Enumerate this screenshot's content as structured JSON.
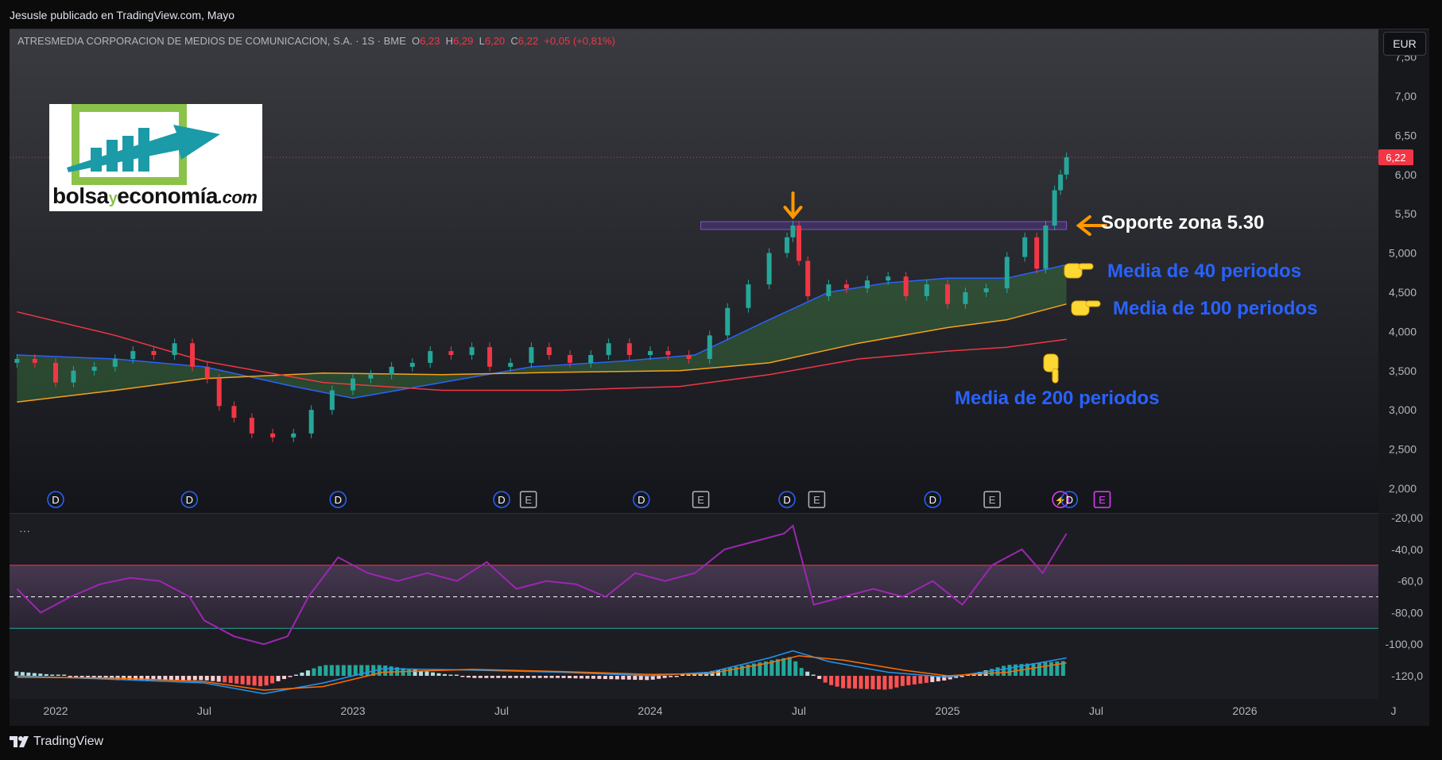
{
  "publish_text": "Jesusle publicado en TradingView.com, Mayo",
  "legend": {
    "symbol": "ATRESMEDIA CORPORACION DE MEDIOS DE COMUNICACION, S.A. · 1S · BME",
    "o_label": "O",
    "o": "6,23",
    "h_label": "H",
    "h": "6,29",
    "l_label": "L",
    "l": "6,20",
    "c_label": "C",
    "c": "6,22",
    "change": "+0,05 (+0,81%)"
  },
  "currency": "EUR",
  "logo": {
    "text1": "bolsa",
    "text2": "y",
    "text3": "economía",
    "text4": ".com"
  },
  "annotations": {
    "support": "Soporte zona 5.30",
    "ma40": "Media de 40 periodos",
    "ma100": "Media de 100 periodos",
    "ma200": "Media de 200 periodos"
  },
  "indicator_menu": "···",
  "footer_brand": "TradingView",
  "colors": {
    "up": "#26a69a",
    "down": "#f23645",
    "ma40": "#2962ff",
    "ma100": "#f7a21b",
    "ma200": "#f23645",
    "rsi": "#9c27b0",
    "annotation_blue": "#2962ff",
    "annotation_white": "#ffffff",
    "arrow_orange": "#ff9800"
  },
  "chart_data": [
    {
      "type": "candlestick",
      "title": "",
      "ylim": [
        2.0,
        7.25
      ],
      "y_ticks": [
        "2,000",
        "2,500",
        "3,000",
        "3,500",
        "4,000",
        "4,500",
        "5,000",
        "5,50",
        "6,00",
        "6,50",
        "7,00",
        "7,50"
      ],
      "x_ticks": [
        "2022",
        "Jul",
        "2023",
        "Jul",
        "2024",
        "Jul",
        "2025",
        "Jul",
        "2026",
        "J"
      ],
      "last_price_label": "6,22",
      "support_zone": [
        5.3,
        5.4
      ],
      "events": [
        {
          "x": 2022.0,
          "kind": "D"
        },
        {
          "x": 2022.45,
          "kind": "D"
        },
        {
          "x": 2022.95,
          "kind": "D"
        },
        {
          "x": 2023.5,
          "kind": "D"
        },
        {
          "x": 2023.59,
          "kind": "E"
        },
        {
          "x": 2023.97,
          "kind": "D"
        },
        {
          "x": 2024.17,
          "kind": "E"
        },
        {
          "x": 2024.46,
          "kind": "D"
        },
        {
          "x": 2024.56,
          "kind": "E"
        },
        {
          "x": 2024.95,
          "kind": "D"
        },
        {
          "x": 2025.15,
          "kind": "E"
        },
        {
          "x": 2025.38,
          "kind": "⚡"
        },
        {
          "x": 2025.41,
          "kind": "D"
        },
        {
          "x": 2025.52,
          "kind": "E"
        }
      ],
      "closes": [
        {
          "x": 2021.87,
          "c": 3.65
        },
        {
          "x": 2021.93,
          "c": 3.6
        },
        {
          "x": 2022.0,
          "c": 3.35
        },
        {
          "x": 2022.06,
          "c": 3.5
        },
        {
          "x": 2022.13,
          "c": 3.55
        },
        {
          "x": 2022.2,
          "c": 3.65
        },
        {
          "x": 2022.26,
          "c": 3.75
        },
        {
          "x": 2022.33,
          "c": 3.7
        },
        {
          "x": 2022.4,
          "c": 3.85
        },
        {
          "x": 2022.46,
          "c": 3.55
        },
        {
          "x": 2022.51,
          "c": 3.4
        },
        {
          "x": 2022.55,
          "c": 3.05
        },
        {
          "x": 2022.6,
          "c": 2.9
        },
        {
          "x": 2022.66,
          "c": 2.7
        },
        {
          "x": 2022.73,
          "c": 2.65
        },
        {
          "x": 2022.8,
          "c": 2.7
        },
        {
          "x": 2022.86,
          "c": 3.0
        },
        {
          "x": 2022.93,
          "c": 3.25
        },
        {
          "x": 2023.0,
          "c": 3.4
        },
        {
          "x": 2023.06,
          "c": 3.45
        },
        {
          "x": 2023.13,
          "c": 3.55
        },
        {
          "x": 2023.2,
          "c": 3.6
        },
        {
          "x": 2023.26,
          "c": 3.75
        },
        {
          "x": 2023.33,
          "c": 3.7
        },
        {
          "x": 2023.4,
          "c": 3.8
        },
        {
          "x": 2023.46,
          "c": 3.55
        },
        {
          "x": 2023.53,
          "c": 3.6
        },
        {
          "x": 2023.6,
          "c": 3.8
        },
        {
          "x": 2023.66,
          "c": 3.7
        },
        {
          "x": 2023.73,
          "c": 3.6
        },
        {
          "x": 2023.8,
          "c": 3.7
        },
        {
          "x": 2023.86,
          "c": 3.85
        },
        {
          "x": 2023.93,
          "c": 3.7
        },
        {
          "x": 2024.0,
          "c": 3.75
        },
        {
          "x": 2024.06,
          "c": 3.7
        },
        {
          "x": 2024.13,
          "c": 3.65
        },
        {
          "x": 2024.2,
          "c": 3.95
        },
        {
          "x": 2024.26,
          "c": 4.3
        },
        {
          "x": 2024.33,
          "c": 4.6
        },
        {
          "x": 2024.4,
          "c": 5.0
        },
        {
          "x": 2024.46,
          "c": 5.2
        },
        {
          "x": 2024.48,
          "c": 5.35
        },
        {
          "x": 2024.5,
          "c": 4.9
        },
        {
          "x": 2024.53,
          "c": 4.45
        },
        {
          "x": 2024.6,
          "c": 4.6
        },
        {
          "x": 2024.66,
          "c": 4.55
        },
        {
          "x": 2024.73,
          "c": 4.65
        },
        {
          "x": 2024.8,
          "c": 4.7
        },
        {
          "x": 2024.86,
          "c": 4.45
        },
        {
          "x": 2024.93,
          "c": 4.6
        },
        {
          "x": 2025.0,
          "c": 4.35
        },
        {
          "x": 2025.06,
          "c": 4.5
        },
        {
          "x": 2025.13,
          "c": 4.55
        },
        {
          "x": 2025.2,
          "c": 4.95
        },
        {
          "x": 2025.26,
          "c": 5.2
        },
        {
          "x": 2025.3,
          "c": 4.8
        },
        {
          "x": 2025.33,
          "c": 5.35
        },
        {
          "x": 2025.36,
          "c": 5.8
        },
        {
          "x": 2025.38,
          "c": 6.0
        },
        {
          "x": 2025.4,
          "c": 6.22
        }
      ],
      "series": [
        {
          "name": "Media de 40 periodos",
          "values": [
            [
              2021.87,
              3.7
            ],
            [
              2022.2,
              3.65
            ],
            [
              2022.5,
              3.55
            ],
            [
              2022.8,
              3.3
            ],
            [
              2023.0,
              3.15
            ],
            [
              2023.3,
              3.35
            ],
            [
              2023.6,
              3.55
            ],
            [
              2023.9,
              3.62
            ],
            [
              2024.15,
              3.7
            ],
            [
              2024.4,
              4.15
            ],
            [
              2024.6,
              4.5
            ],
            [
              2024.8,
              4.62
            ],
            [
              2025.0,
              4.68
            ],
            [
              2025.2,
              4.68
            ],
            [
              2025.4,
              4.85
            ]
          ]
        },
        {
          "name": "Media de 100 periodos",
          "values": [
            [
              2021.87,
              3.1
            ],
            [
              2022.2,
              3.25
            ],
            [
              2022.5,
              3.4
            ],
            [
              2022.9,
              3.47
            ],
            [
              2023.3,
              3.45
            ],
            [
              2023.7,
              3.48
            ],
            [
              2024.1,
              3.5
            ],
            [
              2024.4,
              3.6
            ],
            [
              2024.7,
              3.85
            ],
            [
              2025.0,
              4.05
            ],
            [
              2025.2,
              4.15
            ],
            [
              2025.4,
              4.35
            ]
          ]
        },
        {
          "name": "Media de 200 periodos",
          "values": [
            [
              2021.87,
              4.25
            ],
            [
              2022.2,
              3.95
            ],
            [
              2022.5,
              3.62
            ],
            [
              2022.9,
              3.35
            ],
            [
              2023.3,
              3.25
            ],
            [
              2023.7,
              3.25
            ],
            [
              2024.1,
              3.3
            ],
            [
              2024.4,
              3.45
            ],
            [
              2024.7,
              3.65
            ],
            [
              2025.0,
              3.75
            ],
            [
              2025.2,
              3.8
            ],
            [
              2025.4,
              3.9
            ]
          ]
        }
      ]
    },
    {
      "type": "line",
      "title": "",
      "ylim": [
        -130,
        -20
      ],
      "y_ticks": [
        "-20,00",
        "-40,00",
        "-60,0",
        "-80,00",
        "-100,00",
        "-120,0"
      ],
      "levels": [
        -50,
        -70,
        -90
      ],
      "series": [
        {
          "values": [
            [
              2021.87,
              -65
            ],
            [
              2021.95,
              -80
            ],
            [
              2022.05,
              -70
            ],
            [
              2022.15,
              -62
            ],
            [
              2022.25,
              -58
            ],
            [
              2022.35,
              -60
            ],
            [
              2022.45,
              -70
            ],
            [
              2022.5,
              -85
            ],
            [
              2022.6,
              -95
            ],
            [
              2022.7,
              -100
            ],
            [
              2022.78,
              -95
            ],
            [
              2022.85,
              -70
            ],
            [
              2022.95,
              -45
            ],
            [
              2023.05,
              -55
            ],
            [
              2023.15,
              -60
            ],
            [
              2023.25,
              -55
            ],
            [
              2023.35,
              -60
            ],
            [
              2023.45,
              -48
            ],
            [
              2023.55,
              -65
            ],
            [
              2023.65,
              -60
            ],
            [
              2023.75,
              -62
            ],
            [
              2023.85,
              -70
            ],
            [
              2023.95,
              -55
            ],
            [
              2024.05,
              -60
            ],
            [
              2024.15,
              -55
            ],
            [
              2024.25,
              -40
            ],
            [
              2024.35,
              -35
            ],
            [
              2024.45,
              -30
            ],
            [
              2024.48,
              -25
            ],
            [
              2024.55,
              -75
            ],
            [
              2024.65,
              -70
            ],
            [
              2024.75,
              -65
            ],
            [
              2024.85,
              -70
            ],
            [
              2024.95,
              -60
            ],
            [
              2025.05,
              -75
            ],
            [
              2025.15,
              -50
            ],
            [
              2025.25,
              -40
            ],
            [
              2025.32,
              -55
            ],
            [
              2025.4,
              -30
            ]
          ]
        }
      ]
    },
    {
      "type": "histogram",
      "title": "",
      "series": [
        {
          "name": "MACD",
          "values": [
            [
              2021.87,
              0.0
            ],
            [
              2022.2,
              -0.05
            ],
            [
              2022.5,
              -0.1
            ],
            [
              2022.7,
              -0.25
            ],
            [
              2022.9,
              -0.1
            ],
            [
              2023.1,
              0.1
            ],
            [
              2023.4,
              0.08
            ],
            [
              2023.7,
              0.05
            ],
            [
              2024.0,
              0.0
            ],
            [
              2024.2,
              0.05
            ],
            [
              2024.4,
              0.25
            ],
            [
              2024.48,
              0.35
            ],
            [
              2024.6,
              0.2
            ],
            [
              2024.8,
              0.05
            ],
            [
              2025.0,
              -0.02
            ],
            [
              2025.2,
              0.1
            ],
            [
              2025.4,
              0.25
            ]
          ]
        },
        {
          "name": "Signal",
          "values": [
            [
              2021.87,
              -0.02
            ],
            [
              2022.2,
              -0.03
            ],
            [
              2022.5,
              -0.08
            ],
            [
              2022.7,
              -0.2
            ],
            [
              2022.9,
              -0.15
            ],
            [
              2023.1,
              0.05
            ],
            [
              2023.4,
              0.09
            ],
            [
              2023.7,
              0.06
            ],
            [
              2024.0,
              0.02
            ],
            [
              2024.2,
              0.03
            ],
            [
              2024.4,
              0.18
            ],
            [
              2024.5,
              0.28
            ],
            [
              2024.65,
              0.22
            ],
            [
              2024.85,
              0.08
            ],
            [
              2025.0,
              0.0
            ],
            [
              2025.2,
              0.05
            ],
            [
              2025.4,
              0.18
            ]
          ]
        }
      ]
    }
  ]
}
